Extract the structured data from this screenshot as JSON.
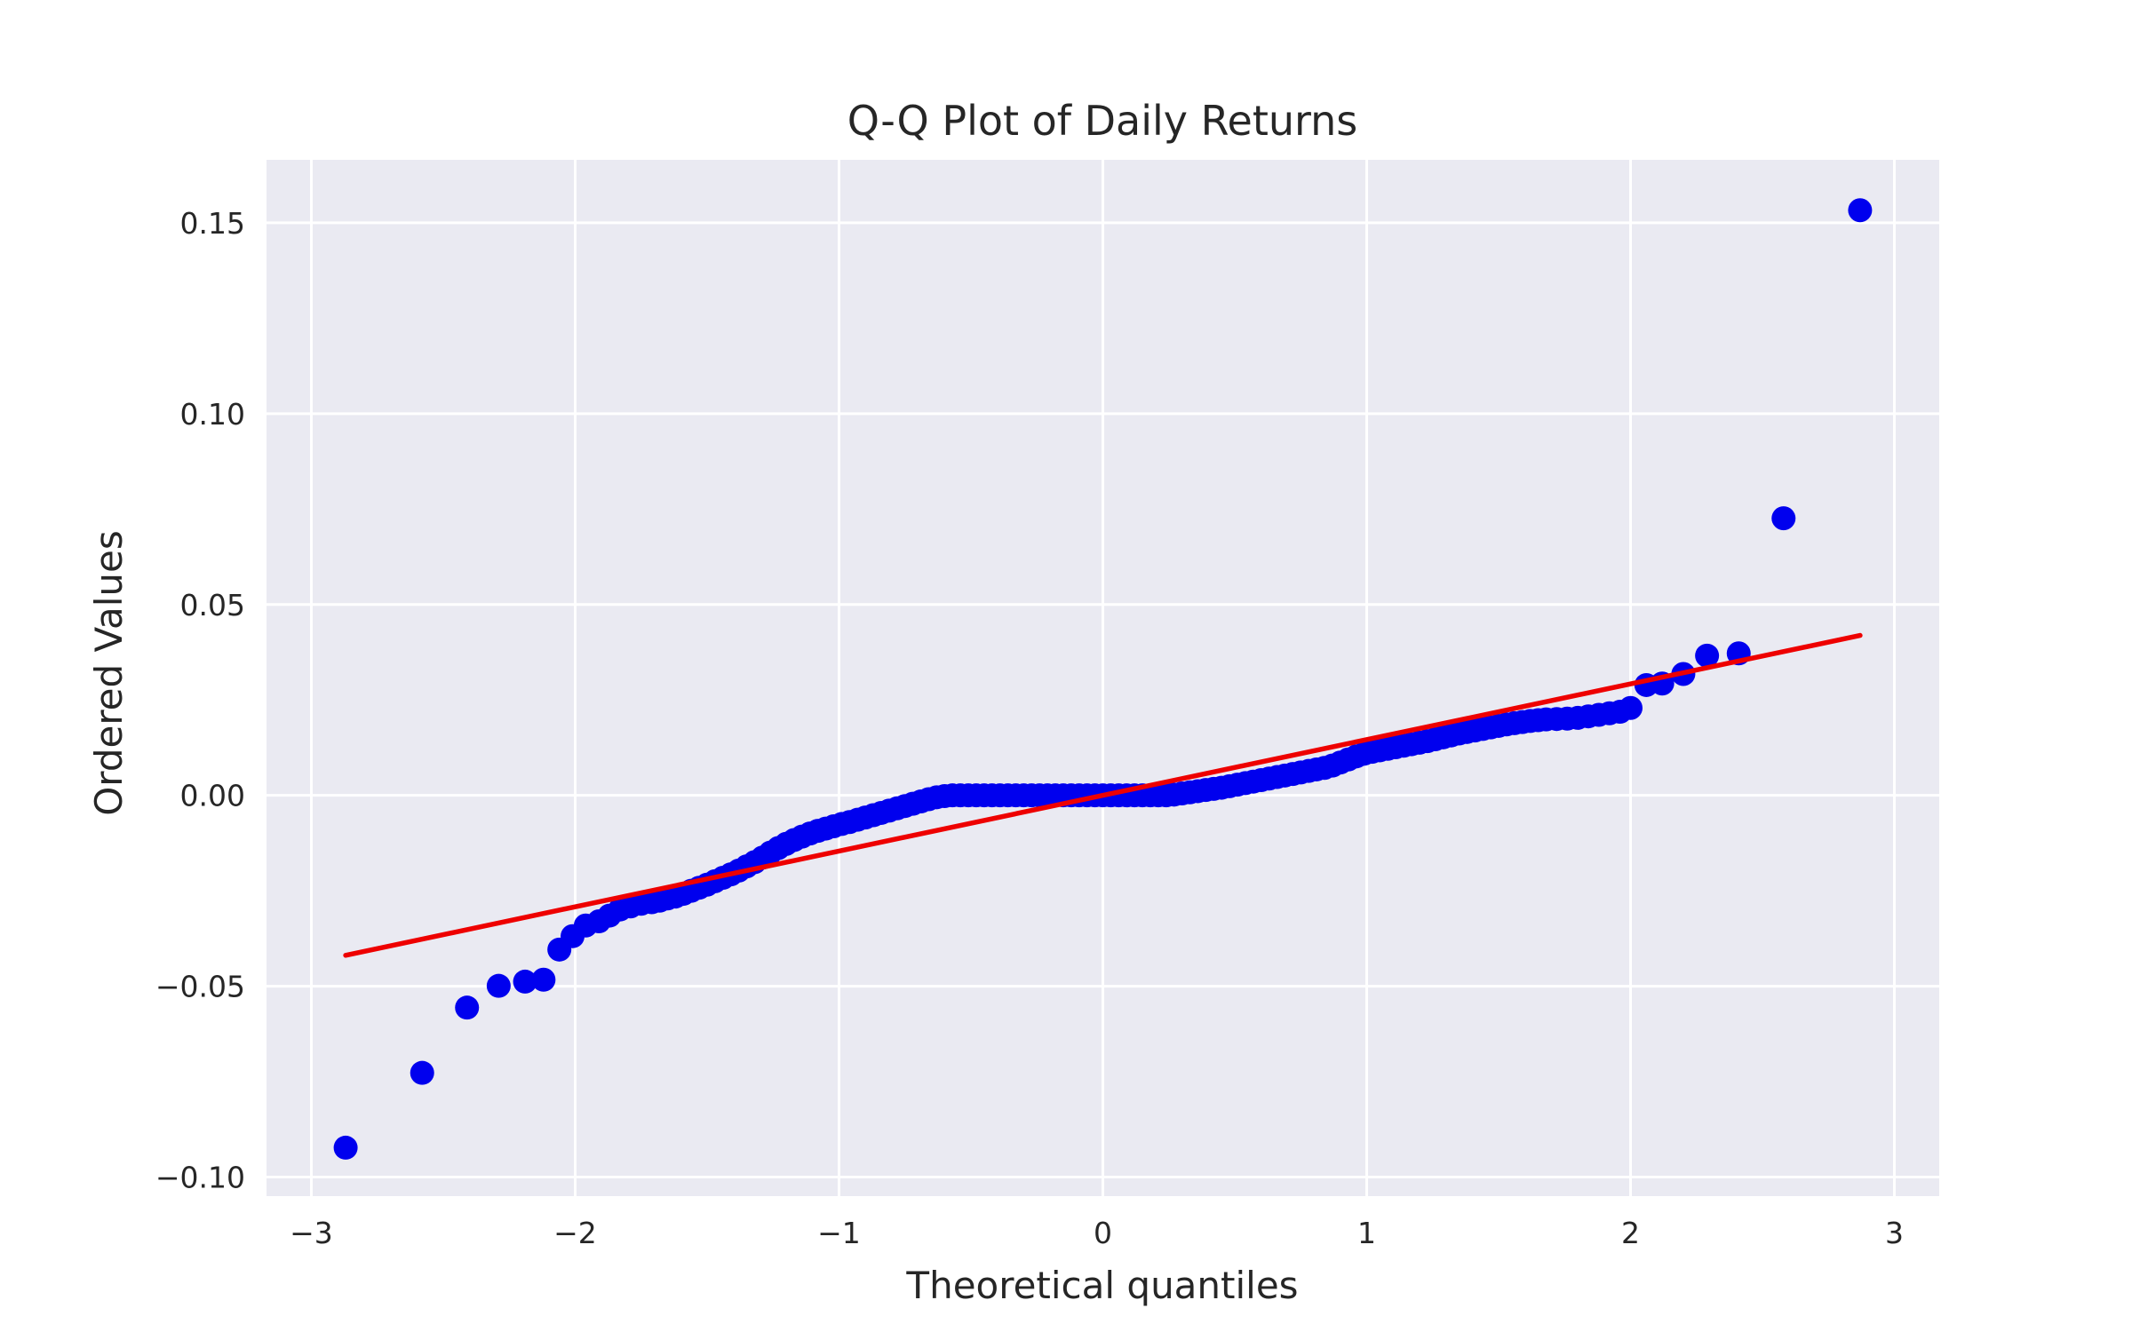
{
  "chart_data": {
    "type": "scatter",
    "title": "Q-Q Plot of Daily Returns",
    "xlabel": "Theoretical quantiles",
    "ylabel": "Ordered Values",
    "xlim": [
      -3.17,
      3.17
    ],
    "ylim": [
      -0.105,
      0.1665
    ],
    "grid": true,
    "x_ticks": [
      -3,
      -2,
      -1,
      0,
      1,
      2,
      3
    ],
    "x_tick_labels": [
      "−3",
      "−2",
      "−1",
      "0",
      "1",
      "2",
      "3"
    ],
    "y_ticks": [
      -0.1,
      -0.05,
      0.0,
      0.05,
      0.1,
      0.15
    ],
    "y_tick_labels": [
      "−0.10",
      "−0.05",
      "0.00",
      "0.05",
      "0.10",
      "0.15"
    ],
    "colors": {
      "background": "#eaeaf2",
      "grid": "#ffffff",
      "points": "#0000ee",
      "fit_line": "#ee0000"
    },
    "fit_line": {
      "slope": 0.0146,
      "intercept": 0.0,
      "x_range": [
        -2.87,
        2.87
      ]
    },
    "points": [
      [
        -2.87,
        -0.0923
      ],
      [
        -2.58,
        -0.0727
      ],
      [
        -2.41,
        -0.0556
      ],
      [
        -2.29,
        -0.0499
      ],
      [
        -2.19,
        -0.0488
      ],
      [
        -2.12,
        -0.0483
      ],
      [
        -2.06,
        -0.0404
      ],
      [
        -2.01,
        -0.0369
      ],
      [
        -1.96,
        -0.0341
      ],
      [
        -1.91,
        -0.033
      ],
      [
        -1.87,
        -0.0315
      ],
      [
        -1.83,
        -0.0299
      ],
      [
        -1.79,
        -0.0291
      ],
      [
        -1.75,
        -0.0284
      ],
      [
        -1.71,
        -0.028
      ],
      [
        -1.68,
        -0.0276
      ],
      [
        -1.65,
        -0.027
      ],
      [
        -1.62,
        -0.0265
      ],
      [
        -1.59,
        -0.0258
      ],
      [
        -1.56,
        -0.025
      ],
      [
        -1.53,
        -0.0242
      ],
      [
        -1.5,
        -0.0234
      ],
      [
        -1.47,
        -0.0225
      ],
      [
        -1.44,
        -0.0216
      ],
      [
        -1.41,
        -0.0207
      ],
      [
        -1.38,
        -0.0197
      ],
      [
        -1.35,
        -0.0186
      ],
      [
        -1.32,
        -0.0175
      ],
      [
        -1.29,
        -0.0163
      ],
      [
        -1.26,
        -0.015
      ],
      [
        -1.23,
        -0.0138
      ],
      [
        -1.2,
        -0.0127
      ],
      [
        -1.17,
        -0.0117
      ],
      [
        -1.14,
        -0.0108
      ],
      [
        -1.11,
        -0.01
      ],
      [
        -1.08,
        -0.0093
      ],
      [
        -1.05,
        -0.0087
      ],
      [
        -1.02,
        -0.0081
      ],
      [
        -0.99,
        -0.0075
      ],
      [
        -0.96,
        -0.007
      ],
      [
        -0.93,
        -0.0064
      ],
      [
        -0.9,
        -0.0058
      ],
      [
        -0.87,
        -0.0052
      ],
      [
        -0.84,
        -0.0046
      ],
      [
        -0.81,
        -0.004
      ],
      [
        -0.78,
        -0.0034
      ],
      [
        -0.75,
        -0.0028
      ],
      [
        -0.72,
        -0.0022
      ],
      [
        -0.69,
        -0.0016
      ],
      [
        -0.66,
        -0.001
      ],
      [
        -0.63,
        -0.0005
      ],
      [
        -0.6,
        -0.0002
      ],
      [
        -0.57,
        0.0
      ],
      [
        -0.54,
        0.0
      ],
      [
        -0.51,
        0.0
      ],
      [
        -0.48,
        0.0
      ],
      [
        -0.45,
        0.0
      ],
      [
        -0.42,
        0.0
      ],
      [
        -0.39,
        0.0
      ],
      [
        -0.36,
        0.0
      ],
      [
        -0.33,
        0.0
      ],
      [
        -0.3,
        0.0
      ],
      [
        -0.27,
        0.0
      ],
      [
        -0.24,
        0.0
      ],
      [
        -0.21,
        0.0
      ],
      [
        -0.18,
        0.0
      ],
      [
        -0.15,
        0.0
      ],
      [
        -0.12,
        0.0
      ],
      [
        -0.09,
        0.0
      ],
      [
        -0.06,
        0.0
      ],
      [
        -0.03,
        0.0
      ],
      [
        0.0,
        0.0
      ],
      [
        0.03,
        0.0
      ],
      [
        0.06,
        0.0
      ],
      [
        0.09,
        0.0
      ],
      [
        0.12,
        0.0
      ],
      [
        0.15,
        0.0
      ],
      [
        0.18,
        0.0
      ],
      [
        0.21,
        0.0
      ],
      [
        0.24,
        0.0
      ],
      [
        0.27,
        0.0002
      ],
      [
        0.3,
        0.0005
      ],
      [
        0.33,
        0.0008
      ],
      [
        0.36,
        0.0011
      ],
      [
        0.39,
        0.0014
      ],
      [
        0.42,
        0.0017
      ],
      [
        0.45,
        0.002
      ],
      [
        0.48,
        0.0024
      ],
      [
        0.51,
        0.0028
      ],
      [
        0.54,
        0.0032
      ],
      [
        0.57,
        0.0036
      ],
      [
        0.6,
        0.004
      ],
      [
        0.63,
        0.0044
      ],
      [
        0.66,
        0.0048
      ],
      [
        0.69,
        0.0052
      ],
      [
        0.72,
        0.0056
      ],
      [
        0.75,
        0.006
      ],
      [
        0.78,
        0.0064
      ],
      [
        0.81,
        0.0068
      ],
      [
        0.84,
        0.0072
      ],
      [
        0.87,
        0.0078
      ],
      [
        0.9,
        0.0086
      ],
      [
        0.93,
        0.0094
      ],
      [
        0.96,
        0.0102
      ],
      [
        0.99,
        0.0109
      ],
      [
        1.02,
        0.0114
      ],
      [
        1.05,
        0.0118
      ],
      [
        1.08,
        0.0122
      ],
      [
        1.11,
        0.0126
      ],
      [
        1.14,
        0.013
      ],
      [
        1.17,
        0.0134
      ],
      [
        1.2,
        0.0138
      ],
      [
        1.23,
        0.0142
      ],
      [
        1.26,
        0.0147
      ],
      [
        1.29,
        0.0152
      ],
      [
        1.32,
        0.0157
      ],
      [
        1.35,
        0.0162
      ],
      [
        1.38,
        0.0166
      ],
      [
        1.41,
        0.017
      ],
      [
        1.44,
        0.0174
      ],
      [
        1.47,
        0.0178
      ],
      [
        1.5,
        0.0182
      ],
      [
        1.53,
        0.0186
      ],
      [
        1.56,
        0.0189
      ],
      [
        1.59,
        0.0192
      ],
      [
        1.62,
        0.0195
      ],
      [
        1.65,
        0.0197
      ],
      [
        1.68,
        0.0199
      ],
      [
        1.72,
        0.02
      ],
      [
        1.76,
        0.0201
      ],
      [
        1.8,
        0.0203
      ],
      [
        1.84,
        0.0207
      ],
      [
        1.88,
        0.0211
      ],
      [
        1.92,
        0.0215
      ],
      [
        1.96,
        0.0219
      ],
      [
        2.0,
        0.0229
      ],
      [
        2.06,
        0.0289
      ],
      [
        2.12,
        0.0293
      ],
      [
        2.2,
        0.0318
      ],
      [
        2.29,
        0.0366
      ],
      [
        2.41,
        0.0372
      ],
      [
        2.58,
        0.0726
      ],
      [
        2.87,
        0.1533
      ]
    ]
  }
}
